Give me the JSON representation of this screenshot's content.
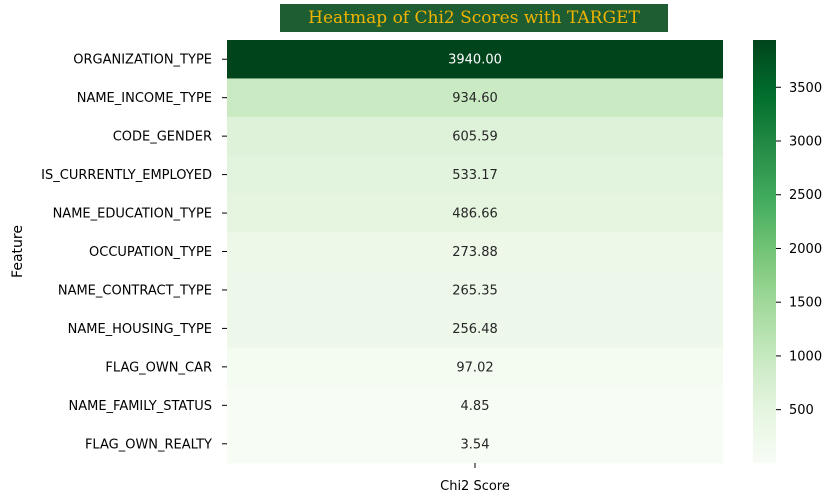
{
  "chart_data": {
    "type": "heatmap",
    "title": "Heatmap of Chi2 Scores with TARGET",
    "xlabel": "Chi2 Score",
    "ylabel": "Feature",
    "categories": [
      "ORGANIZATION_TYPE",
      "NAME_INCOME_TYPE",
      "CODE_GENDER",
      "IS_CURRENTLY_EMPLOYED",
      "NAME_EDUCATION_TYPE",
      "OCCUPATION_TYPE",
      "NAME_CONTRACT_TYPE",
      "NAME_HOUSING_TYPE",
      "FLAG_OWN_CAR",
      "NAME_FAMILY_STATUS",
      "FLAG_OWN_REALTY"
    ],
    "values": [
      3940.0,
      934.6,
      605.59,
      533.17,
      486.66,
      273.88,
      265.35,
      256.48,
      97.02,
      4.85,
      3.54
    ],
    "value_labels": [
      "3940.00",
      "934.60",
      "605.59",
      "533.17",
      "486.66",
      "273.88",
      "265.35",
      "256.48",
      "97.02",
      "4.85",
      "3.54"
    ],
    "colorbar": {
      "range": [
        3.54,
        3940.0
      ],
      "ticks": [
        500,
        1000,
        1500,
        2000,
        2500,
        3000,
        3500
      ],
      "colormap": "Greens"
    },
    "colors": {
      "title_background": "#1e5c32",
      "title_text": "#f0b400"
    }
  }
}
